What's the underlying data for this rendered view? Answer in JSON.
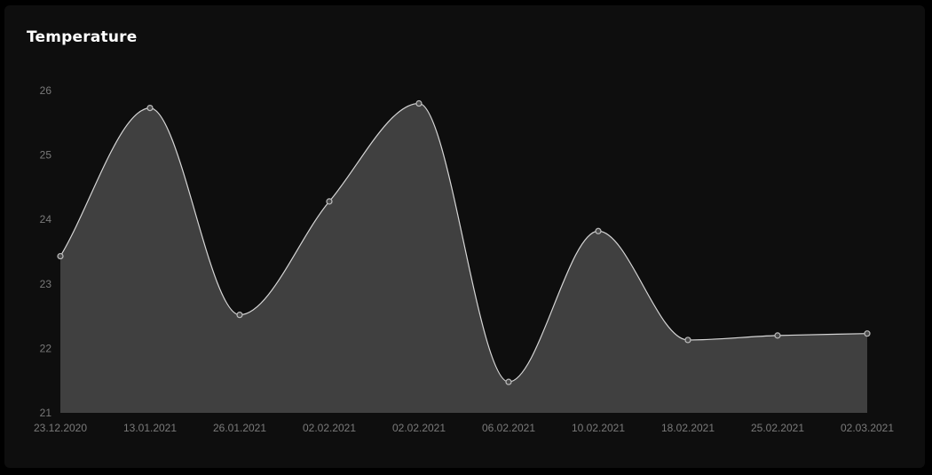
{
  "chart_data": {
    "type": "area",
    "title": "Temperature",
    "xlabel": "",
    "ylabel": "",
    "categories": [
      "23.12.2020",
      "13.01.2021",
      "26.01.2021",
      "02.02.2021",
      "02.02.2021",
      "06.02.2021",
      "10.02.2021",
      "18.02.2021",
      "25.02.2021",
      "02.03.2021"
    ],
    "series": [
      {
        "values": [
          23.43,
          25.73,
          22.52,
          24.28,
          25.8,
          21.48,
          23.82,
          22.13,
          22.2,
          22.23
        ]
      }
    ],
    "ylim": [
      21,
      26
    ],
    "yticks": [
      "21",
      "22",
      "23",
      "24",
      "25",
      "26"
    ],
    "curve": "smooth",
    "grid": false,
    "legend": "none",
    "colors": {
      "fill": "#404040",
      "line": "#d6d6d6",
      "marker_stroke": "#bdbdbd",
      "axis_text": "#7a7a7a"
    }
  }
}
